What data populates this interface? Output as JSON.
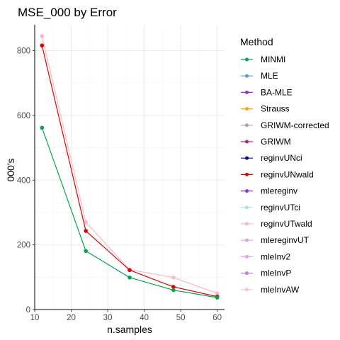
{
  "chart_data": {
    "type": "line",
    "title": "MSE_000 by Error",
    "xlabel": "n.samples",
    "ylabel": "000's",
    "xlim": [
      10,
      62
    ],
    "ylim": [
      0,
      880
    ],
    "xticks": [
      10,
      20,
      30,
      40,
      50,
      60
    ],
    "yticks": [
      0,
      200,
      400,
      600,
      800
    ],
    "grid": true,
    "legend": {
      "title": "Method",
      "position": "right"
    },
    "x": [
      12,
      24,
      36,
      48,
      60
    ],
    "series": [
      {
        "name": "MINMI",
        "color": "#00A650",
        "values": [
          562,
          181,
          99,
          60,
          37
        ]
      },
      {
        "name": "MLE",
        "color": "#5B9BD5",
        "values": null
      },
      {
        "name": "BA-MLE",
        "color": "#9B30D9",
        "values": null
      },
      {
        "name": "Strauss",
        "color": "#FFA500",
        "values": null
      },
      {
        "name": "GRIWM-corrected",
        "color": "#A6A6A6",
        "values": null
      },
      {
        "name": "GRIWM",
        "color": "#A0306A",
        "values": null
      },
      {
        "name": "reginvUNci",
        "color": "#00008B",
        "values": null
      },
      {
        "name": "reginvUNwald",
        "color": "#E00000",
        "values": [
          816,
          243,
          122,
          70,
          40
        ]
      },
      {
        "name": "mlereginv",
        "color": "#8A2BE2",
        "values": null
      },
      {
        "name": "reginvUTci",
        "color": "#A8E0E8",
        "values": null
      },
      {
        "name": "reginvUTwald",
        "color": "#FFB6C1",
        "values": [
          845,
          270,
          123,
          99,
          50
        ]
      },
      {
        "name": "mlereginvUT",
        "color": "#D8A8D8",
        "values": null
      },
      {
        "name": "mleInv2",
        "color": "#E8A0E8",
        "values": null
      },
      {
        "name": "mleInvP",
        "color": "#C080D0",
        "values": null
      },
      {
        "name": "mleInvAW",
        "color": "#FFC0CB",
        "values": null
      }
    ]
  }
}
